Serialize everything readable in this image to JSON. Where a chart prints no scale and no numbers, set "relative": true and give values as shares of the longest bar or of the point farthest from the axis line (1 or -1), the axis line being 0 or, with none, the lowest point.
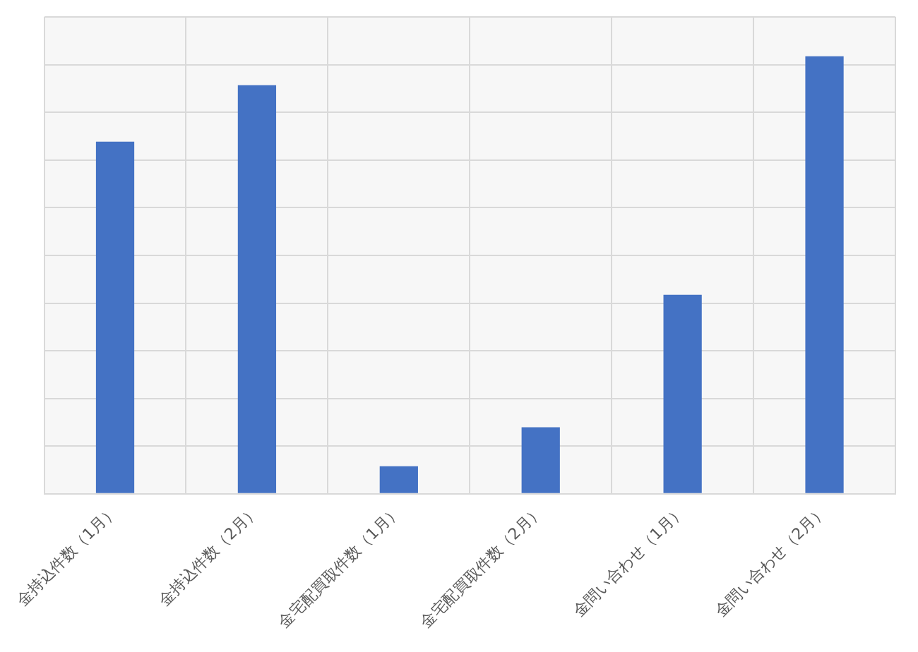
{
  "chart_data": {
    "type": "bar",
    "relative": true,
    "categories": [
      "金持込件数（1月）",
      "金持込件数（2月）",
      "金宅配買取件数（1月）",
      "金宅配買取件数（2月）",
      "金問い合わせ（1月）",
      "金問い合わせ（2月）"
    ],
    "values": [
      0.805,
      0.934,
      0.063,
      0.152,
      0.455,
      1
    ],
    "color": "#4472c4",
    "grid": true,
    "legend": false
  }
}
